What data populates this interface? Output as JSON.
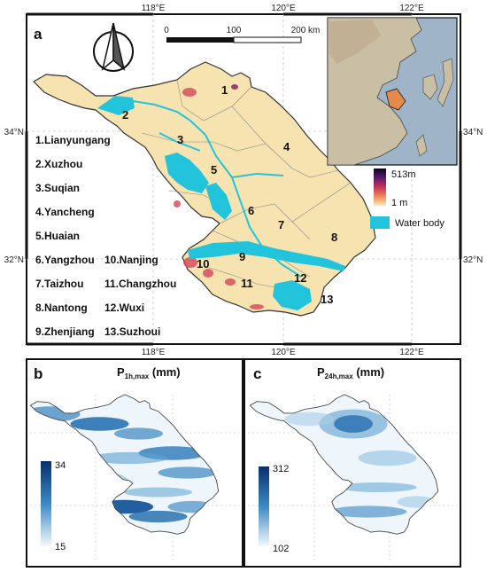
{
  "panels": {
    "a": "a",
    "b": "b",
    "c": "c"
  },
  "axes": {
    "top": [
      "118°E",
      "120°E",
      "122°E"
    ],
    "bottom": [
      "118°E",
      "120°E",
      "122°E"
    ],
    "left": [
      "34°N",
      "32°N"
    ],
    "right": [
      "34°N",
      "32°N"
    ]
  },
  "scalebar": {
    "labels": [
      "0",
      "100",
      "200 km"
    ]
  },
  "cities": [
    "1.Lianyungang",
    "2.Xuzhou",
    "3.Suqian",
    "4.Yancheng",
    "5.Huaian",
    "6.Yangzhou",
    "7.Taizhou",
    "8.Nantong",
    "9.Zhenjiang",
    "10.Nanjing",
    "11.Changzhou",
    "12.Wuxi",
    "13.Suzhoui"
  ],
  "map_numbers": [
    "1",
    "2",
    "3",
    "4",
    "5",
    "6",
    "7",
    "8",
    "9",
    "10",
    "11",
    "12",
    "13"
  ],
  "legend": {
    "elev_max": "513m",
    "elev_min": "1 m",
    "water": "Water body",
    "water_color": "#22c4dc"
  },
  "panel_b": {
    "title_main": "P",
    "title_sub": "1h,max",
    "title_unit": " (mm)",
    "cb_max": "34",
    "cb_min": "15"
  },
  "panel_c": {
    "title_main": "P",
    "title_sub": "24h,max",
    "title_unit": " (mm)",
    "cb_max": "312",
    "cb_min": "102"
  },
  "colors": {
    "land": "#f7e3b0",
    "rain_dark": "#0b4f96",
    "rain_light": "#eef6fb"
  }
}
